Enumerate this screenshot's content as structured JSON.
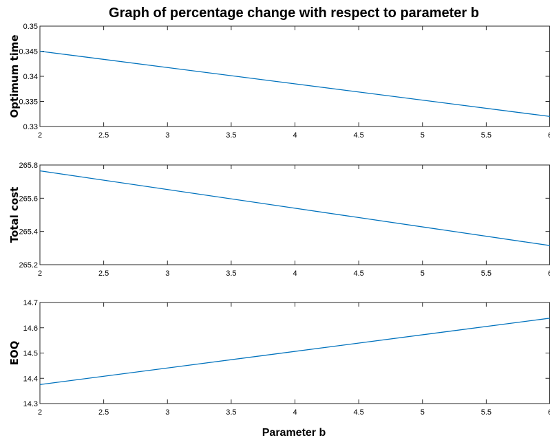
{
  "title": "Graph of percentage change with respect to parameter b",
  "xlabel": "Parameter b",
  "series_color": "#0072BD",
  "chart_data": [
    {
      "type": "line",
      "ylabel": "Optimum time",
      "xlim": [
        2,
        6
      ],
      "ylim": [
        0.33,
        0.35
      ],
      "xticks": [
        "2",
        "2.5",
        "3",
        "3.5",
        "4",
        "4.5",
        "5",
        "5.5",
        "6"
      ],
      "yticks": [
        "0.33",
        "0.335",
        "0.34",
        "0.345",
        "0.35"
      ],
      "x": [
        2,
        6
      ],
      "y": [
        0.345,
        0.332
      ]
    },
    {
      "type": "line",
      "ylabel": "Total cost",
      "xlim": [
        2,
        6
      ],
      "ylim": [
        265.2,
        265.8
      ],
      "xticks": [
        "2",
        "2.5",
        "3",
        "3.5",
        "4",
        "4.5",
        "5",
        "5.5",
        "6"
      ],
      "yticks": [
        "265.2",
        "265.4",
        "265.6",
        "265.8"
      ],
      "x": [
        2,
        6
      ],
      "y": [
        265.765,
        265.315
      ]
    },
    {
      "type": "line",
      "ylabel": "EOQ",
      "xlim": [
        2,
        6
      ],
      "ylim": [
        14.3,
        14.7
      ],
      "xticks": [
        "2",
        "2.5",
        "3",
        "3.5",
        "4",
        "4.5",
        "5",
        "5.5",
        "6"
      ],
      "yticks": [
        "14.3",
        "14.4",
        "14.5",
        "14.6",
        "14.7"
      ],
      "x": [
        2,
        6
      ],
      "y": [
        14.375,
        14.638
      ]
    }
  ]
}
